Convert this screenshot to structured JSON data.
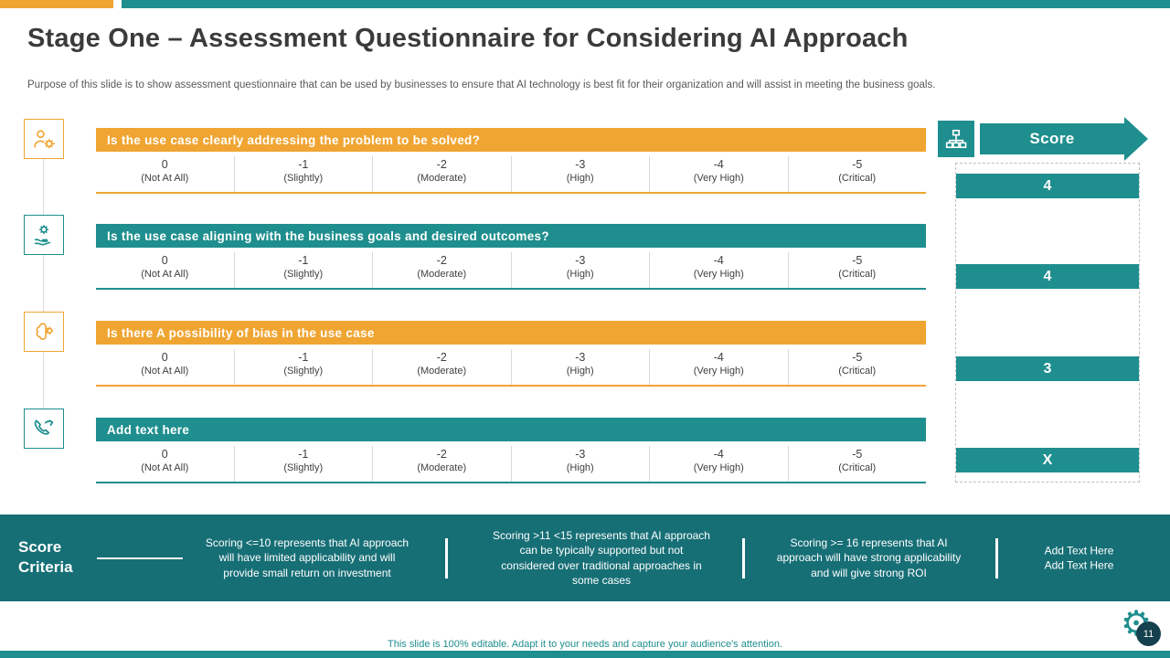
{
  "slide": {
    "title": "Stage One – Assessment Questionnaire for Considering AI Approach",
    "subtitle": "Purpose of this slide is to show assessment questionnaire that can be used by businesses to ensure that AI technology is best fit for their organization and will assist in meeting the business goals.",
    "footer_note": "This slide is 100% editable.  Adapt it to your needs and capture your audience's attention.",
    "page_number": "11"
  },
  "questions": [
    {
      "text": "Is the use case clearly addressing the problem to be solved?",
      "color": "orange",
      "icon": "user-gear-icon",
      "score": "4"
    },
    {
      "text": "Is the use case aligning with the business goals and desired outcomes?",
      "color": "teal",
      "icon": "hand-gear-icon",
      "score": "4"
    },
    {
      "text": "Is there A possibility of bias in the use case",
      "color": "orange",
      "icon": "brain-gear-icon",
      "score": "3"
    },
    {
      "text": "Add text here",
      "color": "teal",
      "icon": "phone-call-icon",
      "score": "X"
    }
  ],
  "scale": {
    "options": [
      {
        "value": "0",
        "label": "(Not At All)"
      },
      {
        "value": "-1",
        "label": "(Slightly)"
      },
      {
        "value": "-2",
        "label": "(Moderate)"
      },
      {
        "value": "-3",
        "label": "(High)"
      },
      {
        "value": "-4",
        "label": "(Very High)"
      },
      {
        "value": "-5",
        "label": "(Critical)"
      }
    ]
  },
  "score_column": {
    "header": "Score"
  },
  "score_criteria": {
    "label": "Score Criteria",
    "items": [
      "Scoring <=10 represents that AI approach will have limited applicability and will provide small return on investment",
      "Scoring >11 <15 represents that AI approach can be typically supported but not considered over traditional approaches in some cases",
      "Scoring >= 16 represents that AI approach will have strong applicability and will give strong ROI"
    ],
    "placeholder_lines": [
      "Add Text Here",
      "Add Text Here"
    ]
  },
  "icons": {
    "gear": "⚙"
  },
  "colors": {
    "orange": "#F0A532",
    "teal": "#1F8E8E",
    "dark_teal": "#176F76",
    "page_circle": "#15404D"
  }
}
